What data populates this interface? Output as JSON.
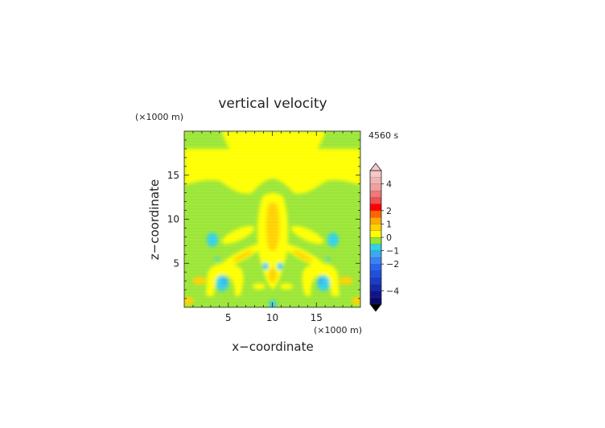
{
  "chart_data": {
    "type": "heatmap",
    "title": "vertical velocity",
    "time_label": "4560 s",
    "xlabel": "x−coordinate",
    "ylabel": "z−coordinate",
    "x_unit": "(×1000 m)",
    "y_unit": "(×1000 m)",
    "xlim": [
      0,
      20
    ],
    "ylim": [
      0,
      20
    ],
    "x_ticks": [
      5,
      10,
      15
    ],
    "y_ticks": [
      5,
      10,
      15
    ],
    "x_tick_labels": [
      "5",
      "10",
      "15"
    ],
    "y_tick_labels": [
      "5",
      "10",
      "15"
    ],
    "colorbar": {
      "levels": [
        -5,
        -4.5,
        -4,
        -3.5,
        -3,
        -2.5,
        -2,
        -1.5,
        -1,
        -0.5,
        0,
        0.5,
        1,
        1.5,
        2,
        2.5,
        3,
        3.5,
        4,
        4.5,
        5
      ],
      "colors": [
        "#0a0a6e",
        "#10148c",
        "#1428aa",
        "#1a3cc8",
        "#1e50dc",
        "#2864f0",
        "#3c82f5",
        "#3ca8f0",
        "#32d2e6",
        "#96e632",
        "#ffff00",
        "#ffd200",
        "#ffaa00",
        "#ff6400",
        "#ff0000",
        "#f05050",
        "#f07878",
        "#f0a0a0",
        "#f0b4b4",
        "#f5c8c8"
      ],
      "tick_values": [
        4,
        2,
        1,
        0,
        -1,
        -2,
        -4
      ],
      "tick_labels": [
        "4",
        "2",
        "1",
        "0",
        "−1",
        "−2",
        "−4"
      ],
      "extend": "both"
    },
    "background_level": "0 to 0.5 (yellow) and -0.5 to 0 (green)",
    "features": [
      {
        "region": "upper band",
        "value_range": [
          0,
          0.5
        ]
      },
      {
        "region": "central column",
        "value_range": [
          0.5,
          1.0
        ]
      },
      {
        "region": "left and right side cells",
        "value_range": [
          -1.5,
          -1.0
        ]
      },
      {
        "region": "lower side cells",
        "value_range": [
          -2.0,
          -1.5
        ]
      }
    ]
  }
}
